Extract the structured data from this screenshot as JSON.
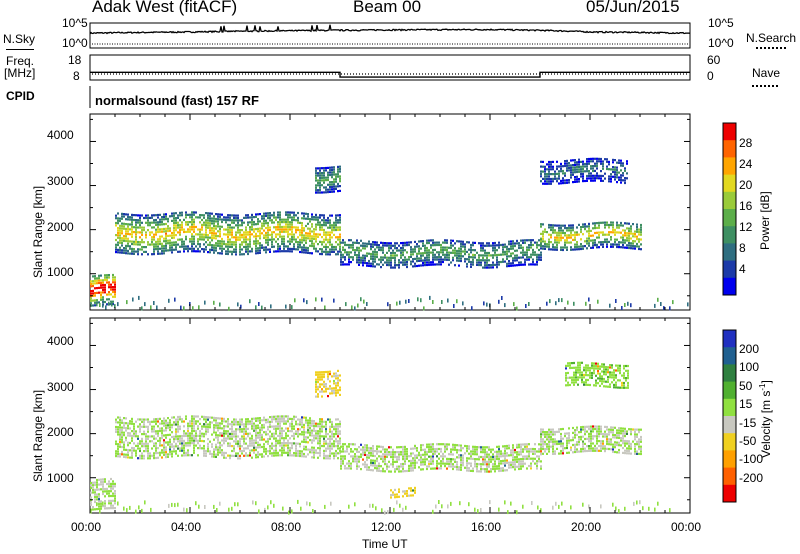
{
  "header": {
    "station": "Adak West (fitACF)",
    "beam": "Beam 00",
    "date": "05/Jun/2015"
  },
  "top_panels": {
    "nsky_label": "N.Sky",
    "nsky_ticks": [
      "10^5",
      "10^0"
    ],
    "nsearch_label": "N.Search",
    "nsearch_ticks": [
      "10^5",
      "10^0"
    ],
    "freq_label": "Freq.",
    "freq_unit": "[MHz]",
    "freq_ticks": [
      "18",
      "8"
    ],
    "nave_label": "Nave",
    "nave_ticks": [
      "60",
      "0"
    ],
    "cpid_label": "CPID",
    "cpid_text": "normalsound (fast) 157 RF"
  },
  "x_axis": {
    "label": "Time UT",
    "ticks": [
      "00:00",
      "04:00",
      "08:00",
      "12:00",
      "16:00",
      "20:00",
      "00:00"
    ]
  },
  "power_panel": {
    "ylabel": "Slant Range [km]",
    "yticks": [
      "4000",
      "3000",
      "2000",
      "1000"
    ],
    "colorbar_label": "Power [dB]",
    "colorbar_ticks": [
      "28",
      "24",
      "20",
      "16",
      "12",
      "8",
      "4"
    ],
    "colors": [
      "#0000ee",
      "#1c3aa8",
      "#2f6e80",
      "#3e8f62",
      "#5cae4a",
      "#9acb3a",
      "#e2d820",
      "#ffa500",
      "#ff6400",
      "#ee0000"
    ]
  },
  "velocity_panel": {
    "ylabel": "Slant Range [km]",
    "yticks": [
      "4000",
      "3000",
      "2000",
      "1000"
    ],
    "colorbar_label": "Velocity [m s^-1]",
    "colorbar_ticks": [
      "200",
      "100",
      "50",
      "15",
      "-15",
      "-50",
      "-100",
      "-200"
    ],
    "colors": [
      "#2030c0",
      "#206090",
      "#2f8040",
      "#50b030",
      "#90e040",
      "#c8c8c0",
      "#f0d020",
      "#ffa000",
      "#ff6000",
      "#ee0000"
    ]
  },
  "chart_data": [
    {
      "type": "line",
      "title": "Adak West (fitACF)",
      "name": "N.Sky / N.Search",
      "x": [
        "00:00",
        "04:00",
        "08:00",
        "12:00",
        "16:00",
        "20:00",
        "00:00"
      ],
      "series": [
        {
          "name": "N.Sky",
          "values": [
            1500,
            3000,
            6000,
            10000,
            12000,
            3000,
            1500
          ]
        }
      ],
      "yscale": "log",
      "ylim": [
        1,
        100000
      ]
    },
    {
      "type": "line",
      "name": "Freq / Nave",
      "x": [
        "00:00",
        "10:00",
        "10:00",
        "18:00",
        "18:00",
        "24:00"
      ],
      "series": [
        {
          "name": "Freq.",
          "values": [
            10.6,
            10.6,
            8.4,
            8.4,
            10.6,
            10.6
          ]
        },
        {
          "name": "Nave",
          "values": [
            20,
            20,
            20,
            20,
            20,
            20
          ]
        }
      ],
      "ylim": [
        8,
        18
      ]
    },
    {
      "type": "heatmap",
      "name": "Power",
      "xlabel": "Time UT",
      "ylabel": "Slant Range [km]",
      "xlim": [
        0,
        24
      ],
      "ylim": [
        200,
        4600
      ],
      "colorbar": {
        "label": "Power [dB]",
        "range": [
          0,
          32
        ]
      },
      "regions": [
        {
          "t0": 0.0,
          "t1": 1.0,
          "r0": 300,
          "r1": 1000,
          "value": 30
        },
        {
          "t0": 1.0,
          "t1": 10.0,
          "r0": 1500,
          "r1": 2400,
          "value": 20
        },
        {
          "t0": 9.0,
          "t1": 10.0,
          "r0": 2900,
          "r1": 3500,
          "value": 12
        },
        {
          "t0": 10.0,
          "t1": 18.0,
          "r0": 1200,
          "r1": 1800,
          "value": 12
        },
        {
          "t0": 18.0,
          "t1": 22.0,
          "r0": 1600,
          "r1": 2200,
          "value": 20
        },
        {
          "t0": 18.0,
          "t1": 21.5,
          "r0": 3100,
          "r1": 3600,
          "value": 8
        }
      ]
    },
    {
      "type": "heatmap",
      "name": "Velocity",
      "xlabel": "Time UT",
      "ylabel": "Slant Range [km]",
      "xlim": [
        0,
        24
      ],
      "ylim": [
        200,
        4600
      ],
      "colorbar": {
        "label": "Velocity [m s^-1]",
        "range": [
          -250,
          250
        ]
      },
      "regions": [
        {
          "t0": 0.0,
          "t1": 1.0,
          "r0": 300,
          "r1": 1000,
          "value": 0
        },
        {
          "t0": 1.0,
          "t1": 10.0,
          "r0": 1500,
          "r1": 2400,
          "value": 0
        },
        {
          "t0": 9.0,
          "t1": 10.0,
          "r0": 2900,
          "r1": 3500,
          "value": -60
        },
        {
          "t0": 10.0,
          "t1": 18.0,
          "r0": 1200,
          "r1": 1800,
          "value": 0
        },
        {
          "t0": 12.0,
          "t1": 13.0,
          "r0": 600,
          "r1": 800,
          "value": -60
        },
        {
          "t0": 18.0,
          "t1": 22.0,
          "r0": 1600,
          "r1": 2200,
          "value": 0
        },
        {
          "t0": 19.0,
          "t1": 21.5,
          "r0": 3100,
          "r1": 3600,
          "value": 40
        }
      ]
    }
  ]
}
